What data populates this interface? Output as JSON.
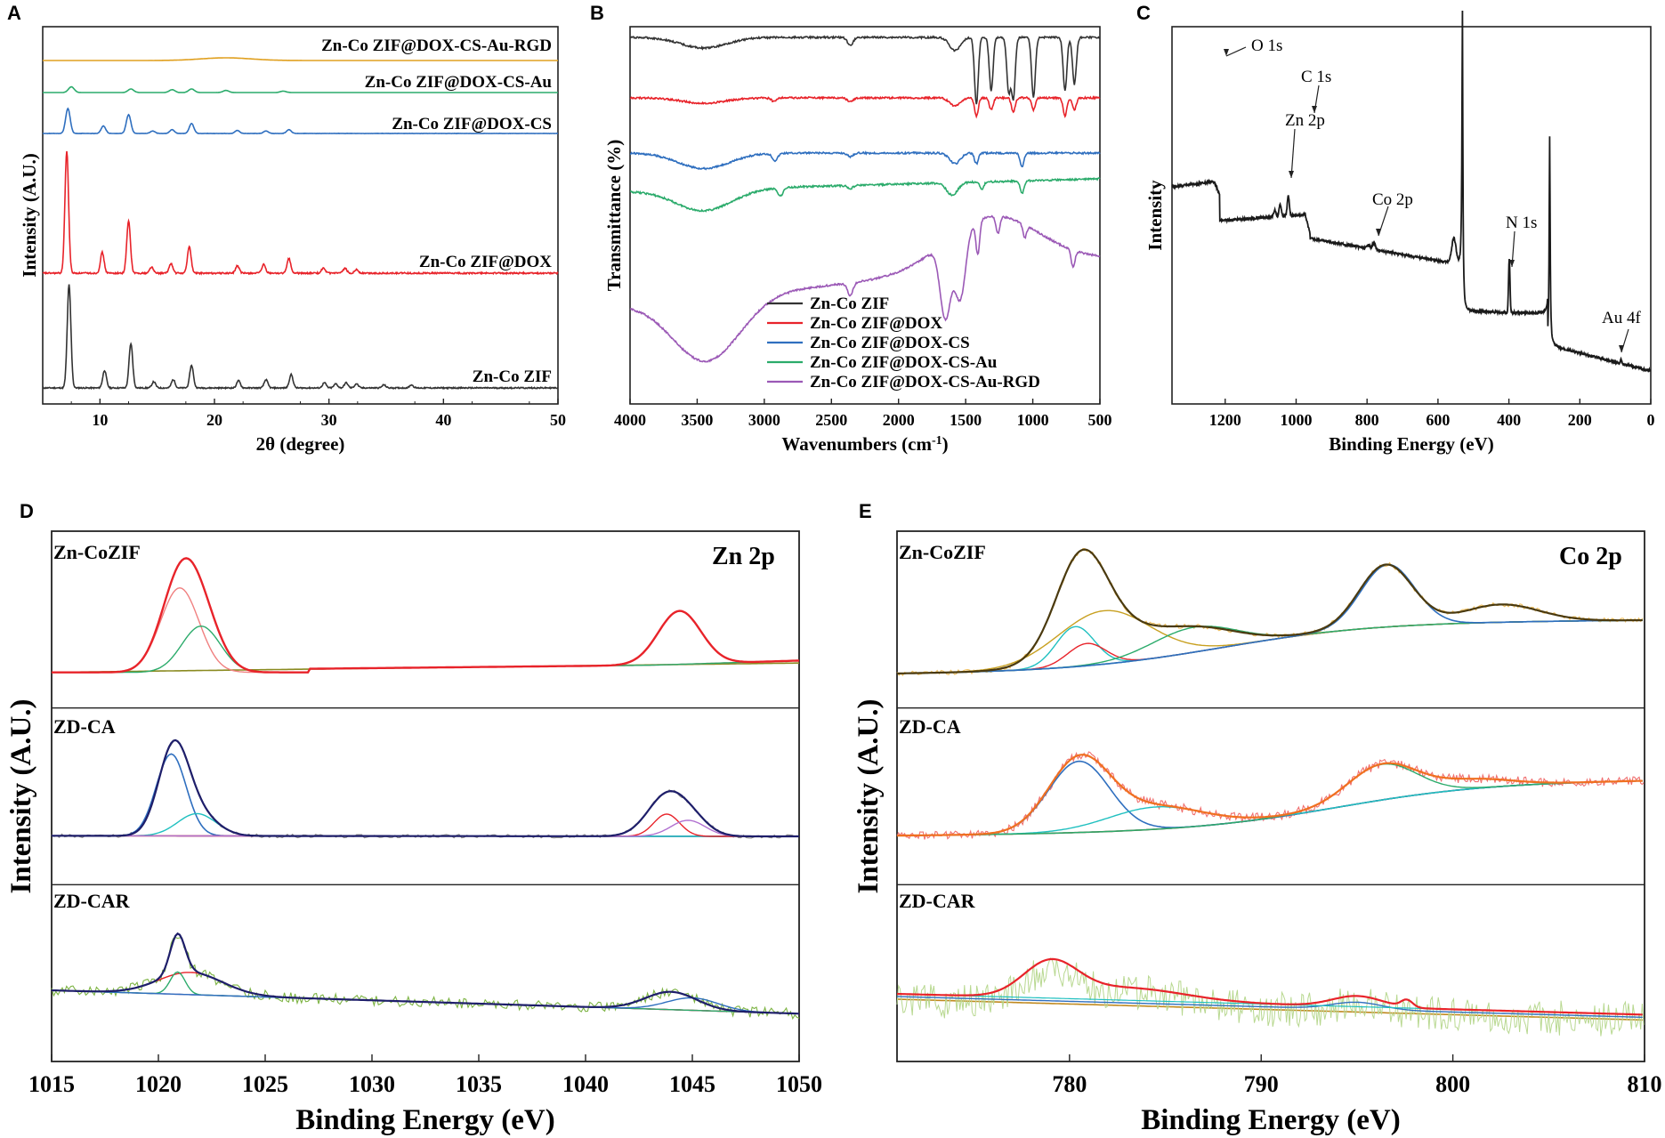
{
  "chart_data": [
    {
      "panel": "A",
      "type": "line",
      "xlabel": "2θ (degree)",
      "ylabel": "Intensity (A.U.)",
      "xlim": [
        5,
        50
      ],
      "xticks": [
        "10",
        "20",
        "30",
        "40",
        "50"
      ],
      "series": [
        {
          "name": "Zn-Co ZIF",
          "color": "#333333",
          "peaks": [
            [
              7.3,
              1.0
            ],
            [
              10.4,
              0.17
            ],
            [
              12.7,
              0.43
            ],
            [
              14.7,
              0.06
            ],
            [
              16.4,
              0.08
            ],
            [
              18.0,
              0.22
            ],
            [
              22.1,
              0.07
            ],
            [
              24.5,
              0.08
            ],
            [
              26.7,
              0.13
            ],
            [
              29.6,
              0.05
            ],
            [
              30.6,
              0.04
            ],
            [
              31.5,
              0.05
            ],
            [
              32.4,
              0.04
            ],
            [
              34.8,
              0.03
            ],
            [
              37.2,
              0.03
            ]
          ]
        },
        {
          "name": "Zn-Co ZIF@DOX",
          "color": "#e8232a",
          "peaks": [
            [
              7.1,
              1.0
            ],
            [
              10.2,
              0.17
            ],
            [
              12.5,
              0.43
            ],
            [
              14.5,
              0.05
            ],
            [
              16.2,
              0.08
            ],
            [
              17.8,
              0.22
            ],
            [
              22.0,
              0.06
            ],
            [
              24.3,
              0.07
            ],
            [
              26.5,
              0.12
            ],
            [
              29.5,
              0.04
            ],
            [
              31.4,
              0.04
            ],
            [
              32.4,
              0.03
            ]
          ]
        },
        {
          "name": "Zn-Co ZIF@DOX-CS",
          "color": "#2f6fbf",
          "peaks": [
            [
              7.2,
              1.0
            ],
            [
              10.3,
              0.3
            ],
            [
              12.5,
              0.75
            ],
            [
              14.6,
              0.1
            ],
            [
              16.3,
              0.15
            ],
            [
              18.0,
              0.4
            ],
            [
              22.0,
              0.12
            ],
            [
              24.5,
              0.1
            ],
            [
              26.5,
              0.15
            ]
          ]
        },
        {
          "name": "Zn-Co ZIF@DOX-CS-Au",
          "color": "#2bab6b",
          "peaks": [
            [
              7.5,
              0.8
            ],
            [
              12.7,
              0.5
            ],
            [
              16.3,
              0.4
            ],
            [
              18.0,
              0.5
            ],
            [
              21.0,
              0.3
            ],
            [
              26.0,
              0.2
            ]
          ]
        },
        {
          "name": "Zn-Co ZIF@DOX-CS-Au-RGD",
          "color": "#e0a020",
          "peaks": [
            [
              21.0,
              0.6
            ]
          ]
        }
      ]
    },
    {
      "panel": "B",
      "type": "line",
      "xlabel": "Wavenumbers (cm",
      "xlabel_superscript": "-1",
      "xlabel_close": ")",
      "ylabel": "Transmittance (%)",
      "xlim": [
        4000,
        500
      ],
      "xticks": [
        "4000",
        "3500",
        "3000",
        "2500",
        "2000",
        "1500",
        "1000",
        "500"
      ],
      "series": [
        {
          "name": "Zn-Co ZIF",
          "color": "#333333",
          "bands": [
            [
              3450,
              0.3
            ],
            [
              2360,
              0.12
            ],
            [
              1580,
              0.2
            ],
            [
              1420,
              1.0
            ],
            [
              1310,
              0.8
            ],
            [
              1180,
              0.8
            ],
            [
              1145,
              0.9
            ],
            [
              995,
              0.9
            ],
            [
              760,
              0.8
            ],
            [
              690,
              0.7
            ]
          ]
        },
        {
          "name": "Zn-Co ZIF@DOX",
          "color": "#e8232a",
          "bands": [
            [
              3450,
              0.3
            ],
            [
              2930,
              0.08
            ],
            [
              2360,
              0.1
            ],
            [
              1580,
              0.2
            ],
            [
              1420,
              0.45
            ],
            [
              1310,
              0.3
            ],
            [
              1145,
              0.35
            ],
            [
              995,
              0.3
            ],
            [
              760,
              0.45
            ],
            [
              690,
              0.3
            ]
          ]
        },
        {
          "name": "Zn-Co ZIF@DOX-CS",
          "color": "#2f6fbf",
          "bands": [
            [
              3450,
              0.5
            ],
            [
              2920,
              0.2
            ],
            [
              2360,
              0.1
            ],
            [
              1580,
              0.3
            ],
            [
              1420,
              0.3
            ],
            [
              1080,
              0.4
            ]
          ]
        },
        {
          "name": "Zn-Co ZIF@DOX-CS-Au",
          "color": "#2bab6b",
          "bands": [
            [
              3450,
              0.6
            ],
            [
              2880,
              0.25
            ],
            [
              2360,
              0.1
            ],
            [
              1600,
              0.4
            ],
            [
              1380,
              0.25
            ],
            [
              1080,
              0.4
            ]
          ]
        },
        {
          "name": "Zn-Co ZIF@DOX-CS-Au-RGD",
          "color": "#9b59b6",
          "bands": [
            [
              3430,
              0.9
            ],
            [
              2360,
              0.15
            ],
            [
              1650,
              0.9
            ],
            [
              1540,
              0.8
            ],
            [
              1410,
              0.4
            ],
            [
              1260,
              0.2
            ],
            [
              1060,
              0.15
            ],
            [
              700,
              0.2
            ]
          ]
        }
      ],
      "legend": {
        "position": "lower-right"
      }
    },
    {
      "panel": "C",
      "type": "line",
      "xlabel": "Binding Energy (eV)",
      "ylabel": "Intensity",
      "xlim": [
        1350,
        0
      ],
      "xticks": [
        "1200",
        "1000",
        "800",
        "600",
        "400",
        "200",
        "0"
      ],
      "annotations": [
        "O 1s",
        "C 1s",
        "Zn 2p",
        "Co 2p",
        "N 1s",
        "Au 4f"
      ],
      "peak_positions_eV": {
        "Zn 2p": 1022,
        "Co 2p": 781,
        "O 1s": 531,
        "N 1s": 399,
        "C 1s": 285,
        "Au 4f": 84
      }
    },
    {
      "panel": "D",
      "type": "line",
      "title": "Zn 2p",
      "xlabel": "Binding Energy (eV)",
      "ylabel": "Intensity (A.U.)",
      "xlim": [
        1015,
        1050
      ],
      "xticks": [
        "1015",
        "1020",
        "1025",
        "1030",
        "1035",
        "1040",
        "1045",
        "1050"
      ],
      "subpanels": [
        "Zn-CoZIF",
        "ZD-CA",
        "ZD-CAR"
      ],
      "peaks_eV": {
        "Zn 2p3/2": 1021.3,
        "Zn 2p1/2": 1044.3
      }
    },
    {
      "panel": "E",
      "type": "line",
      "title": "Co 2p",
      "xlabel": "Binding Energy (eV)",
      "ylabel": "Intensity (A.U.)",
      "xlim": [
        771,
        810
      ],
      "xticks": [
        "780",
        "790",
        "800",
        "810"
      ],
      "subpanels": [
        "Zn-CoZIF",
        "ZD-CA",
        "ZD-CAR"
      ],
      "peaks_eV": {
        "Co 2p3/2": 780.7,
        "Co 2p1/2": 796.5,
        "satellite_1": 786.5,
        "satellite_2": 802.5
      }
    }
  ],
  "labels": {
    "a": "A",
    "b": "B",
    "c": "C",
    "d": "D",
    "e": "E",
    "dsub1": "Zn-CoZIF",
    "dsub2": "ZD-CA",
    "dsub3": "ZD-CAR",
    "esub1": "Zn-CoZIF",
    "esub2": "ZD-CA",
    "esub3": "ZD-CAR",
    "dcorner": "Zn 2p",
    "ecorner": "Co 2p"
  }
}
